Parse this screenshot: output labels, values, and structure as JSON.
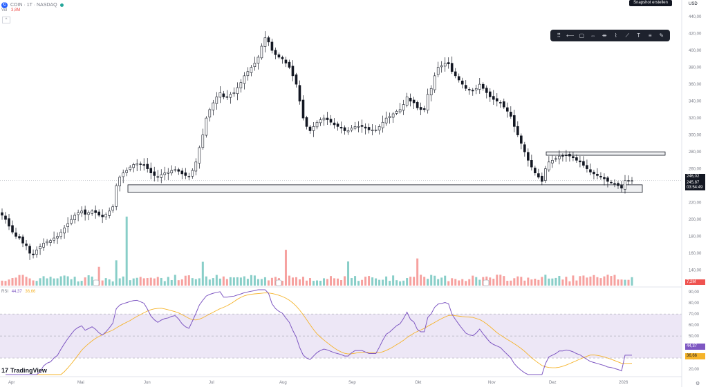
{
  "header": {
    "logo": "C",
    "symbol": "COIN · 1T · NASDAQ",
    "prices": "",
    "vol_label": "Vol",
    "vol_value": "3,8M"
  },
  "snapshot_label": "Snapshot erstellen",
  "currency": "USD",
  "toolbar": {
    "icons": [
      "grip-icon",
      "horizontal-line-icon",
      "rectangle-icon",
      "range-icon",
      "measure-icon",
      "path-icon",
      "trendline-icon",
      "text-icon",
      "fib-icon",
      "brush-icon"
    ]
  },
  "rsi": {
    "label": "RSI",
    "value": "44,37",
    "ma": "36,66",
    "value_tag": "44,37",
    "ma_tag": "36,66"
  },
  "brand": {
    "name": "TradingView",
    "mark": "17"
  },
  "price_tags": {
    "last": "246,02",
    "current": "245,87",
    "countdown": "03:54:49",
    "volume": "7,2M"
  },
  "colors": {
    "up": "#26a69a",
    "down": "#ef5350",
    "rsi": "#7e57c2",
    "rsi_ma": "#f5b32a",
    "band": "#ede7f6"
  },
  "chart_data": [
    {
      "type": "candlestick",
      "title": "COIN · 1T · NASDAQ",
      "y_axis_labels": [
        440,
        420,
        400,
        380,
        360,
        340,
        320,
        300,
        280,
        260,
        240,
        220,
        200,
        180,
        160,
        140
      ],
      "x_axis_labels": [
        "Apr",
        "Mai",
        "Jun",
        "Jul",
        "Aug",
        "Sep",
        "Okt",
        "Nov",
        "Dez",
        "2026"
      ],
      "ylim": [
        125,
        445
      ],
      "support_zone": [
        232,
        241
      ],
      "resistance_zone": [
        276,
        280
      ],
      "close": [
        205,
        200,
        192,
        185,
        180,
        178,
        172,
        169,
        160,
        158,
        164,
        168,
        172,
        174,
        175,
        178,
        180,
        185,
        190,
        195,
        200,
        205,
        208,
        210,
        206,
        208,
        210,
        208,
        205,
        203,
        206,
        210,
        215,
        240,
        250,
        255,
        258,
        262,
        265,
        266,
        265,
        264,
        260,
        255,
        252,
        250,
        253,
        255,
        256,
        258,
        259,
        257,
        254,
        252,
        251,
        258,
        268,
        285,
        300,
        320,
        330,
        338,
        345,
        350,
        345,
        345,
        348,
        350,
        356,
        362,
        370,
        375,
        380,
        385,
        392,
        405,
        415,
        410,
        400,
        395,
        392,
        390,
        385,
        380,
        370,
        360,
        340,
        320,
        310,
        305,
        310,
        315,
        318,
        320,
        318,
        315,
        312,
        310,
        308,
        305,
        305,
        308,
        310,
        310,
        310,
        308,
        306,
        306,
        306,
        310,
        315,
        320,
        322,
        325,
        328,
        330,
        336,
        345,
        340,
        338,
        332,
        330,
        330,
        348,
        355,
        370,
        380,
        382,
        385,
        384,
        375,
        370,
        365,
        360,
        355,
        353,
        352,
        355,
        360,
        355,
        350,
        345,
        342,
        340,
        338,
        333,
        328,
        322,
        310,
        300,
        290,
        280,
        270,
        262,
        255,
        250,
        245,
        260,
        268,
        270,
        272,
        275,
        275,
        276,
        275,
        273,
        270,
        268,
        264,
        260,
        256,
        254,
        252,
        250,
        248,
        245,
        244,
        242,
        240,
        237,
        246,
        246,
        246
      ],
      "volume_unit": "M",
      "volume_axis_label": "7,2M"
    },
    {
      "type": "line",
      "title": "RSI",
      "y_axis_labels": [
        90,
        80,
        70,
        60,
        50,
        40,
        30,
        20
      ],
      "ylim": [
        15,
        92
      ],
      "overbought": 70,
      "oversold": 30,
      "series": [
        {
          "name": "RSI",
          "values": []
        },
        {
          "name": "RSI MA",
          "values": []
        }
      ]
    }
  ]
}
